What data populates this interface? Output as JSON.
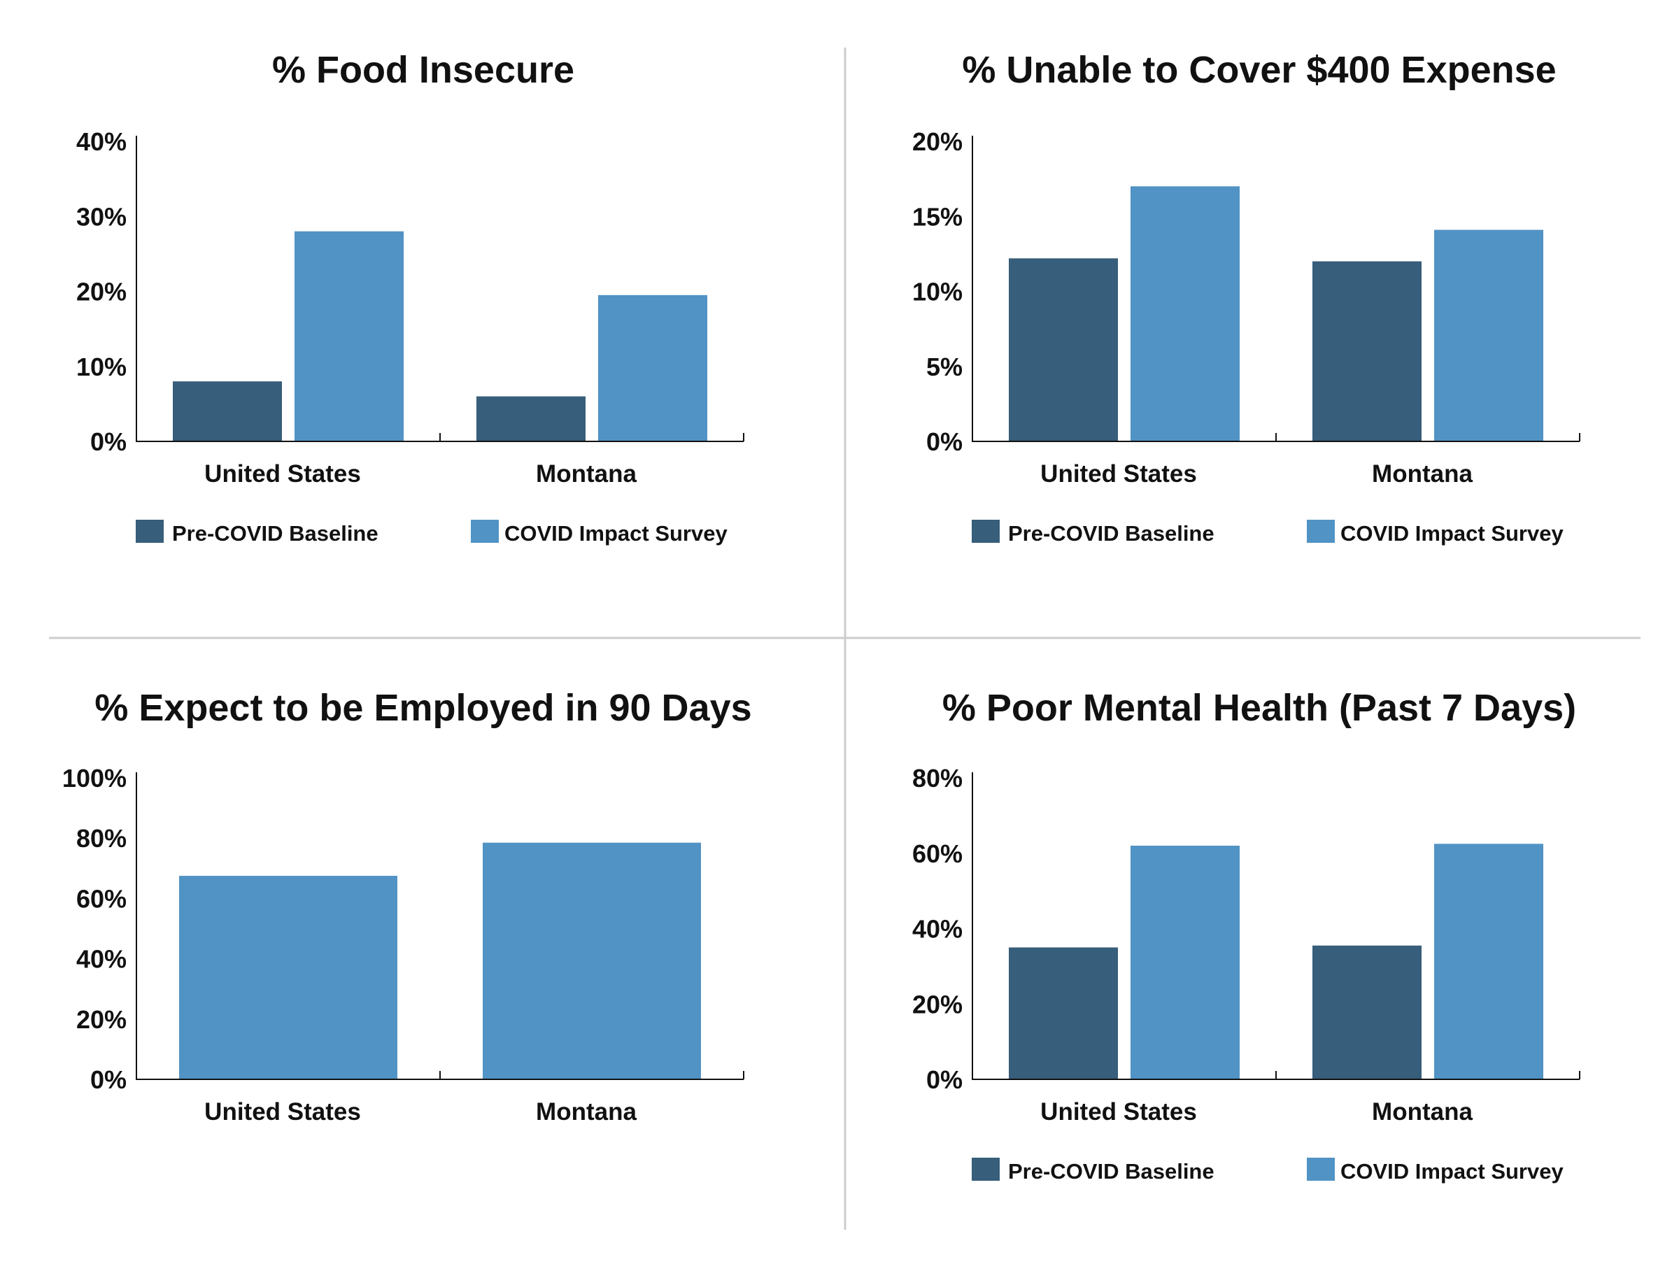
{
  "colors": {
    "pre_covid": "#375e7a",
    "covid": "#5193c4",
    "axis": "#111111",
    "divider": "#cccccc"
  },
  "legend": {
    "pre_label": "Pre-COVID Baseline",
    "covid_label": "COVID Impact Survey"
  },
  "chart_data": [
    {
      "type": "bar",
      "title": "% Food Insecure",
      "categories": [
        "United States",
        "Montana"
      ],
      "series": [
        {
          "name": "Pre-COVID Baseline",
          "values": [
            8,
            6
          ]
        },
        {
          "name": "COVID Impact Survey",
          "values": [
            28,
            19.5
          ]
        }
      ],
      "ylim": [
        0,
        40
      ],
      "yticks": [
        0,
        10,
        20,
        30,
        40
      ],
      "ytick_labels": [
        "0%",
        "10%",
        "20%",
        "30%",
        "40%"
      ],
      "xlabel": "",
      "ylabel": "",
      "legend": "bottom",
      "grid": false
    },
    {
      "type": "bar",
      "title": "% Unable to Cover $400 Expense",
      "categories": [
        "United States",
        "Montana"
      ],
      "series": [
        {
          "name": "Pre-COVID Baseline",
          "values": [
            12.2,
            12
          ]
        },
        {
          "name": "COVID Impact Survey",
          "values": [
            17,
            14.1
          ]
        }
      ],
      "ylim": [
        0,
        20
      ],
      "yticks": [
        0,
        5,
        10,
        15,
        20
      ],
      "ytick_labels": [
        "0%",
        "5%",
        "10%",
        "15%",
        "20%"
      ],
      "xlabel": "",
      "ylabel": "",
      "legend": "bottom",
      "grid": false
    },
    {
      "type": "bar",
      "title": "% Expect to be Employed in 90 Days",
      "categories": [
        "United States",
        "Montana"
      ],
      "series": [
        {
          "name": "COVID Impact Survey",
          "values": [
            67.5,
            78.5
          ]
        }
      ],
      "ylim": [
        0,
        100
      ],
      "yticks": [
        0,
        20,
        40,
        60,
        80,
        100
      ],
      "ytick_labels": [
        "0%",
        "20%",
        "40%",
        "60%",
        "80%",
        "100%"
      ],
      "xlabel": "",
      "ylabel": "",
      "legend": "none",
      "grid": false
    },
    {
      "type": "bar",
      "title": "% Poor Mental Health (Past 7 Days)",
      "categories": [
        "United States",
        "Montana"
      ],
      "series": [
        {
          "name": "Pre-COVID Baseline",
          "values": [
            35,
            35.5
          ]
        },
        {
          "name": "COVID Impact Survey",
          "values": [
            62,
            62.5
          ]
        }
      ],
      "ylim": [
        0,
        80
      ],
      "yticks": [
        0,
        20,
        40,
        60,
        80
      ],
      "ytick_labels": [
        "0%",
        "20%",
        "40%",
        "60%",
        "80%"
      ],
      "xlabel": "",
      "ylabel": "",
      "legend": "bottom",
      "grid": false
    }
  ]
}
